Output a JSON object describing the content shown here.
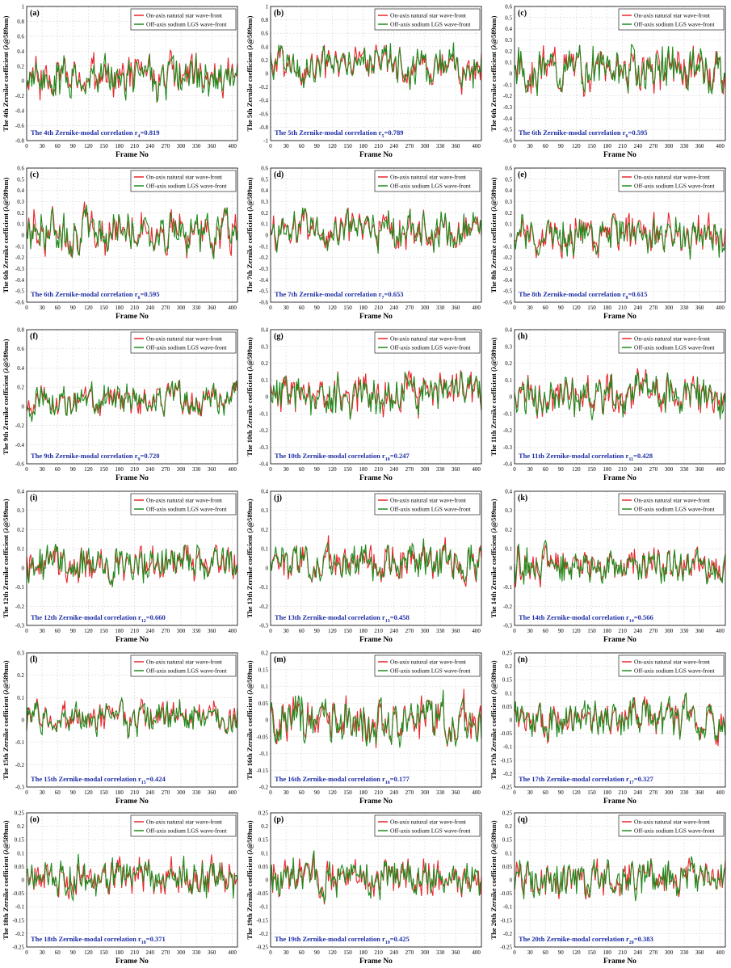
{
  "legend": {
    "natural": "On-axis natural star wave-front",
    "lgs": "Off-axis sodium LGS wave-front"
  },
  "xlabel": "Frame No",
  "colors": {
    "natural": "#e8262b",
    "lgs": "#1f8a1c",
    "annotation": "#1f2fa6"
  },
  "chart_data": [
    {
      "type": "line",
      "letter": "(a)",
      "ylabel": "The 4th Zernike coefficient (λ@589nm)",
      "ann_pre": "The 4th Zernike-modal correlation r",
      "ann_sub": "4",
      "ann_val": "=0.819",
      "ylim": [
        -0.8,
        1
      ],
      "yticks": [
        "1",
        "0.8",
        "0.6",
        "0.4",
        "0.2",
        "0",
        "-0.2",
        "-0.4",
        "-0.6",
        "-0.8"
      ],
      "xlim": [
        0,
        410
      ],
      "xticks": [
        "0",
        "30",
        "60",
        "90",
        "120",
        "150",
        "180",
        "210",
        "240",
        "270",
        "300",
        "330",
        "360",
        "400"
      ],
      "amp": 0.2,
      "offset": 0.05,
      "seed": 4
    },
    {
      "type": "line",
      "letter": "(b)",
      "ylabel": "The 5th Zernike coefficient (λ@589nm)",
      "ann_pre": "The 5th Zernike-modal correlation r",
      "ann_sub": "5",
      "ann_val": "=0.789",
      "ylim": [
        -1,
        1
      ],
      "yticks": [
        "1",
        "0.8",
        "0.6",
        "0.4",
        "0.2",
        "0",
        "-0.2",
        "-0.4",
        "-0.6",
        "-0.8",
        "-1"
      ],
      "xlim": [
        0,
        410
      ],
      "xticks": [
        "0",
        "30",
        "60",
        "90",
        "120",
        "150",
        "180",
        "210",
        "240",
        "270",
        "300",
        "330",
        "360",
        "400"
      ],
      "amp": 0.2,
      "offset": 0.1,
      "seed": 5
    },
    {
      "type": "line",
      "letter": "(c)",
      "ylabel": "The 6th Zernike coefficient (λ@589nm)",
      "ann_pre": "The 6th Zernike-modal correlation r",
      "ann_sub": "6",
      "ann_val": "=0.595",
      "ylim": [
        -0.6,
        0.6
      ],
      "yticks": [
        "0.6",
        "0.5",
        "0.4",
        "0.3",
        "0.2",
        "0.1",
        "0",
        "-0.1",
        "-0.2",
        "-0.3",
        "-0.4",
        "-0.5",
        "-0.6"
      ],
      "xlim": [
        0,
        410
      ],
      "xticks": [
        "0",
        "30",
        "60",
        "90",
        "120",
        "150",
        "180",
        "210",
        "240",
        "270",
        "300",
        "330",
        "360",
        "400"
      ],
      "amp": 0.14,
      "offset": 0.04,
      "seed": 6
    },
    {
      "type": "line",
      "letter": "(c)",
      "ylabel": "The 6th Zernike coefficient (λ@589nm)",
      "ann_pre": "The 6th Zernike-modal correlation r",
      "ann_sub": "6",
      "ann_val": "=0.595",
      "ylim": [
        -0.6,
        0.6
      ],
      "yticks": [
        "0.6",
        "0.5",
        "0.4",
        "0.3",
        "0.2",
        "0.1",
        "0",
        "-0.1",
        "-0.2",
        "-0.3",
        "-0.4",
        "-0.5",
        "-0.6"
      ],
      "xlim": [
        0,
        410
      ],
      "xticks": [
        "0",
        "30",
        "60",
        "90",
        "120",
        "150",
        "180",
        "210",
        "240",
        "270",
        "300",
        "330",
        "360",
        "400"
      ],
      "amp": 0.14,
      "offset": 0.04,
      "seed": 7
    },
    {
      "type": "line",
      "letter": "(d)",
      "ylabel": "The 7th Zernike coefficient (λ@589nm)",
      "ann_pre": "The 7th Zernike-modal correlation r",
      "ann_sub": "7",
      "ann_val": "=0.653",
      "ylim": [
        -0.6,
        0.6
      ],
      "yticks": [
        "0.6",
        "0.5",
        "0.4",
        "0.3",
        "0.2",
        "0.1",
        "0",
        "-0.1",
        "-0.2",
        "-0.3",
        "-0.4",
        "-0.5",
        "-0.6"
      ],
      "xlim": [
        0,
        410
      ],
      "xticks": [
        "0",
        "30",
        "60",
        "90",
        "120",
        "150",
        "180",
        "210",
        "240",
        "270",
        "300",
        "330",
        "360",
        "400"
      ],
      "amp": 0.12,
      "offset": 0.03,
      "seed": 8
    },
    {
      "type": "line",
      "letter": "(e)",
      "ylabel": "The 8th Zernike coefficient (λ@589nm)",
      "ann_pre": "The 8th Zernike-modal correlation r",
      "ann_sub": "8",
      "ann_val": "=0.615",
      "ylim": [
        -0.6,
        0.6
      ],
      "yticks": [
        "0.6",
        "0.5",
        "0.4",
        "0.3",
        "0.2",
        "0.1",
        "0",
        "-0.1",
        "-0.2",
        "-0.3",
        "-0.4",
        "-0.5",
        "-0.6"
      ],
      "xlim": [
        0,
        410
      ],
      "xticks": [
        "0",
        "30",
        "60",
        "90",
        "120",
        "150",
        "180",
        "210",
        "240",
        "270",
        "300",
        "330",
        "360",
        "400"
      ],
      "amp": 0.13,
      "offset": 0.0,
      "seed": 9
    },
    {
      "type": "line",
      "letter": "(f)",
      "ylabel": "The 9th Zernike coefficient (λ@589nm)",
      "ann_pre": "The 9th Zernike-modal correlation r",
      "ann_sub": "9",
      "ann_val": "=0.720",
      "ylim": [
        -0.6,
        0.8
      ],
      "yticks": [
        "0.8",
        "0.6",
        "0.4",
        "0.2",
        "0",
        "-0.2",
        "-0.4",
        "-0.6"
      ],
      "xlim": [
        0,
        410
      ],
      "xticks": [
        "0",
        "30",
        "60",
        "90",
        "120",
        "150",
        "180",
        "210",
        "240",
        "270",
        "300",
        "330",
        "360",
        "400"
      ],
      "amp": 0.12,
      "offset": 0.05,
      "seed": 10
    },
    {
      "type": "line",
      "letter": "(g)",
      "ylabel": "The 10th Zernike coefficient (λ@589nm)",
      "ann_pre": "The 10th Zernike-modal correlation r",
      "ann_sub": "10",
      "ann_val": "=0.247",
      "ylim": [
        -0.4,
        0.4
      ],
      "yticks": [
        "0.4",
        "0.3",
        "0.2",
        "0.1",
        "0",
        "-0.1",
        "-0.2",
        "-0.3",
        "-0.4"
      ],
      "xlim": [
        0,
        410
      ],
      "xticks": [
        "0",
        "30",
        "60",
        "90",
        "120",
        "150",
        "180",
        "210",
        "240",
        "270",
        "300",
        "330",
        "360",
        "400"
      ],
      "amp": 0.09,
      "offset": 0.02,
      "seed": 11
    },
    {
      "type": "line",
      "letter": "(h)",
      "ylabel": "The 11th Zernike coefficient (λ@589nm)",
      "ann_pre": "The 11th Zernike-modal correlation r",
      "ann_sub": "11",
      "ann_val": "=0.428",
      "ylim": [
        -0.4,
        0.4
      ],
      "yticks": [
        "0.4",
        "0.3",
        "0.2",
        "0.1",
        "0",
        "-0.1",
        "-0.2",
        "-0.3",
        "-0.4"
      ],
      "xlim": [
        0,
        410
      ],
      "xticks": [
        "0",
        "30",
        "60",
        "90",
        "120",
        "150",
        "180",
        "210",
        "240",
        "270",
        "300",
        "330",
        "360",
        "400"
      ],
      "amp": 0.09,
      "offset": 0.0,
      "seed": 12
    },
    {
      "type": "line",
      "letter": "(i)",
      "ylabel": "The 12th Zernike coefficient (λ@589nm)",
      "ann_pre": "The 12th Zernike-modal correlation r",
      "ann_sub": "12",
      "ann_val": "=0.660",
      "ylim": [
        -0.3,
        0.4
      ],
      "yticks": [
        "0.4",
        "0.3",
        "0.2",
        "0.1",
        "0",
        "-0.1",
        "-0.2",
        "-0.3"
      ],
      "xlim": [
        0,
        410
      ],
      "xticks": [
        "0",
        "30",
        "60",
        "90",
        "120",
        "150",
        "180",
        "210",
        "240",
        "270",
        "300",
        "330",
        "360",
        "400"
      ],
      "amp": 0.07,
      "offset": 0.02,
      "seed": 13
    },
    {
      "type": "line",
      "letter": "(j)",
      "ylabel": "The 13th Zernike coefficient (λ@589nm)",
      "ann_pre": "The 13th Zernike-modal correlation r",
      "ann_sub": "13",
      "ann_val": "=0.458",
      "ylim": [
        -0.3,
        0.4
      ],
      "yticks": [
        "0.4",
        "0.3",
        "0.2",
        "0.1",
        "0",
        "-0.1",
        "-0.2",
        "-0.3"
      ],
      "xlim": [
        0,
        410
      ],
      "xticks": [
        "0",
        "30",
        "60",
        "90",
        "120",
        "150",
        "180",
        "210",
        "240",
        "270",
        "300",
        "330",
        "360",
        "400"
      ],
      "amp": 0.07,
      "offset": 0.03,
      "seed": 14
    },
    {
      "type": "line",
      "letter": "(k)",
      "ylabel": "The 14th Zernike coefficient (λ@589nm)",
      "ann_pre": "The 14th Zernike-modal correlation r",
      "ann_sub": "14",
      "ann_val": "=0.566",
      "ylim": [
        -0.3,
        0.4
      ],
      "yticks": [
        "0.4",
        "0.3",
        "0.2",
        "0.1",
        "0",
        "-0.1",
        "-0.2",
        "-0.3"
      ],
      "xlim": [
        0,
        410
      ],
      "xticks": [
        "0",
        "30",
        "60",
        "90",
        "120",
        "150",
        "180",
        "210",
        "240",
        "270",
        "300",
        "330",
        "360",
        "400"
      ],
      "amp": 0.07,
      "offset": 0.02,
      "seed": 15
    },
    {
      "type": "line",
      "letter": "(l)",
      "ylabel": "The 15th Zernike coefficient (λ@589nm)",
      "ann_pre": "The 15th Zernike-modal correlation r",
      "ann_sub": "15",
      "ann_val": "=0.424",
      "ylim": [
        -0.3,
        0.3
      ],
      "yticks": [
        "0.3",
        "0.2",
        "0.1",
        "0",
        "-0.1",
        "-0.2",
        "-0.3"
      ],
      "xlim": [
        0,
        410
      ],
      "xticks": [
        "0",
        "30",
        "60",
        "90",
        "120",
        "150",
        "180",
        "210",
        "240",
        "270",
        "300",
        "330",
        "360",
        "400"
      ],
      "amp": 0.05,
      "offset": 0.01,
      "seed": 16
    },
    {
      "type": "line",
      "letter": "(m)",
      "ylabel": "The 16th Zernike coefficient (λ@589nm)",
      "ann_pre": "The 16th Zernike-modal correlation r",
      "ann_sub": "16",
      "ann_val": "=0.177",
      "ylim": [
        -0.2,
        0.2
      ],
      "yticks": [
        "0.2",
        "0.15",
        "0.1",
        "0.05",
        "0",
        "-0.05",
        "-0.1",
        "-0.15",
        "-0.2"
      ],
      "xlim": [
        0,
        410
      ],
      "xticks": [
        "0",
        "30",
        "60",
        "90",
        "120",
        "150",
        "180",
        "210",
        "240",
        "270",
        "300",
        "330",
        "360",
        "400"
      ],
      "amp": 0.05,
      "offset": 0.0,
      "seed": 17
    },
    {
      "type": "line",
      "letter": "(n)",
      "ylabel": "The 17th Zernike coefficient (λ@589nm)",
      "ann_pre": "The 17th Zernike-modal correlation r",
      "ann_sub": "17",
      "ann_val": "=0.327",
      "ylim": [
        -0.25,
        0.25
      ],
      "yticks": [
        "0.25",
        "0.2",
        "0.15",
        "0.1",
        "0.05",
        "0",
        "-0.05",
        "-0.1",
        "-0.15",
        "-0.2",
        "-0.25"
      ],
      "xlim": [
        0,
        410
      ],
      "xticks": [
        "0",
        "30",
        "60",
        "90",
        "120",
        "150",
        "180",
        "210",
        "240",
        "270",
        "300",
        "330",
        "360",
        "400"
      ],
      "amp": 0.05,
      "offset": 0.0,
      "seed": 18
    },
    {
      "type": "line",
      "letter": "(o)",
      "ylabel": "The 18th Zernike coefficient (λ@589nm)",
      "ann_pre": "The 18th Zernike-modal correlation r",
      "ann_sub": "18",
      "ann_val": "=0.371",
      "ylim": [
        -0.25,
        0.25
      ],
      "yticks": [
        "0.25",
        "0.2",
        "0.15",
        "0.1",
        "0.05",
        "0",
        "-0.05",
        "-0.1",
        "-0.15",
        "-0.2",
        "-0.25"
      ],
      "xlim": [
        0,
        410
      ],
      "xticks": [
        "0",
        "30",
        "60",
        "90",
        "120",
        "150",
        "180",
        "210",
        "240",
        "270",
        "300",
        "330",
        "360",
        "400"
      ],
      "amp": 0.05,
      "offset": 0.01,
      "seed": 19
    },
    {
      "type": "line",
      "letter": "(p)",
      "ylabel": "The 19th Zernike coefficient (λ@589nm)",
      "ann_pre": "The 19th Zernike-modal correlation r",
      "ann_sub": "19",
      "ann_val": "=0.425",
      "ylim": [
        -0.25,
        0.25
      ],
      "yticks": [
        "0.25",
        "0.2",
        "0.15",
        "0.1",
        "0.05",
        "0",
        "-0.05",
        "-0.1",
        "-0.15",
        "-0.2",
        "-0.25"
      ],
      "xlim": [
        0,
        410
      ],
      "xticks": [
        "0",
        "30",
        "60",
        "90",
        "120",
        "150",
        "180",
        "210",
        "240",
        "270",
        "300",
        "330",
        "360",
        "400"
      ],
      "amp": 0.05,
      "offset": 0.01,
      "seed": 20
    },
    {
      "type": "line",
      "letter": "(q)",
      "ylabel": "The 20th Zernike coefficient (λ@589nm)",
      "ann_pre": "The 20th Zernike-modal correlation r",
      "ann_sub": "20",
      "ann_val": "=0.383",
      "ylim": [
        -0.25,
        0.25
      ],
      "yticks": [
        "0.25",
        "0.2",
        "0.15",
        "0.1",
        "0.05",
        "0",
        "-0.05",
        "-0.1",
        "-0.15",
        "-0.2",
        "-0.25"
      ],
      "xlim": [
        0,
        410
      ],
      "xticks": [
        "0",
        "30",
        "60",
        "90",
        "120",
        "150",
        "180",
        "210",
        "240",
        "270",
        "300",
        "330",
        "360",
        "400"
      ],
      "amp": 0.05,
      "offset": 0.0,
      "seed": 21
    }
  ]
}
